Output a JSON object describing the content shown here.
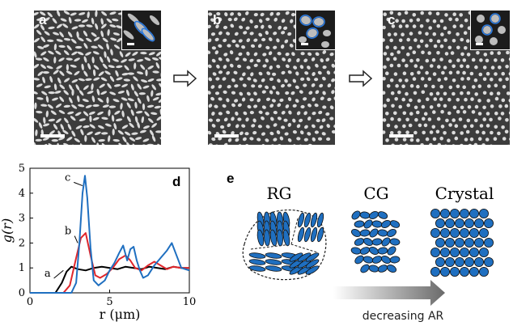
{
  "panels": [
    {
      "id": "a",
      "label": "a"
    },
    {
      "id": "b",
      "label": "b"
    },
    {
      "id": "c",
      "label": "c"
    }
  ],
  "section_d_label": "d",
  "section_e_label": "e",
  "schematic": {
    "labels": [
      "RG",
      "CG",
      "Crystal"
    ],
    "arrow_label": "decreasing AR",
    "ellipse_color": "#1f6fc0",
    "outline_color": "#000000"
  },
  "chart_data": {
    "type": "line",
    "xlabel": "r (μm)",
    "ylabel": "g(r)",
    "xlim": [
      0,
      10
    ],
    "ylim": [
      0,
      5
    ],
    "xticks": [
      0,
      5,
      10
    ],
    "yticks": [
      0,
      1,
      2,
      3,
      4,
      5
    ],
    "grid": false,
    "series": [
      {
        "name": "a",
        "color": "#000000",
        "x": [
          0,
          1.6,
          2.0,
          2.3,
          2.6,
          3.0,
          3.5,
          4.0,
          4.5,
          5.0,
          5.5,
          6.0,
          6.5,
          7.0,
          7.5,
          8.0,
          8.5,
          9.0,
          9.5,
          10
        ],
        "y": [
          0,
          0,
          0.4,
          0.85,
          1.05,
          0.95,
          0.9,
          1.0,
          1.05,
          1.0,
          0.95,
          1.05,
          1.0,
          0.95,
          1.05,
          1.0,
          0.95,
          1.05,
          1.0,
          1.0
        ]
      },
      {
        "name": "b",
        "color": "#e0262b",
        "x": [
          0,
          2.1,
          2.5,
          2.9,
          3.2,
          3.5,
          3.8,
          4.1,
          4.4,
          4.8,
          5.2,
          5.6,
          6.0,
          6.3,
          6.6,
          7.0,
          7.4,
          7.8,
          8.2,
          8.6,
          9.0,
          9.5,
          10
        ],
        "y": [
          0,
          0,
          0.3,
          1.4,
          2.2,
          2.4,
          1.5,
          0.7,
          0.6,
          0.75,
          1.0,
          1.35,
          1.5,
          1.3,
          1.0,
          0.9,
          1.1,
          1.25,
          1.1,
          0.95,
          1.05,
          1.0,
          1.0
        ]
      },
      {
        "name": "c",
        "color": "#1f6fc0",
        "x": [
          0,
          2.6,
          2.9,
          3.1,
          3.3,
          3.45,
          3.6,
          3.8,
          4.0,
          4.3,
          4.7,
          5.0,
          5.3,
          5.6,
          5.85,
          6.1,
          6.3,
          6.5,
          6.7,
          6.9,
          7.1,
          7.4,
          7.8,
          8.2,
          8.6,
          8.9,
          9.2,
          9.5,
          10
        ],
        "y": [
          0,
          0,
          0.4,
          2.0,
          4.0,
          4.7,
          3.8,
          1.8,
          0.5,
          0.3,
          0.5,
          0.9,
          1.2,
          1.6,
          1.9,
          1.3,
          1.75,
          1.85,
          1.3,
          0.9,
          0.6,
          0.7,
          1.1,
          1.4,
          1.7,
          2.0,
          1.5,
          1.0,
          0.9
        ]
      }
    ]
  }
}
